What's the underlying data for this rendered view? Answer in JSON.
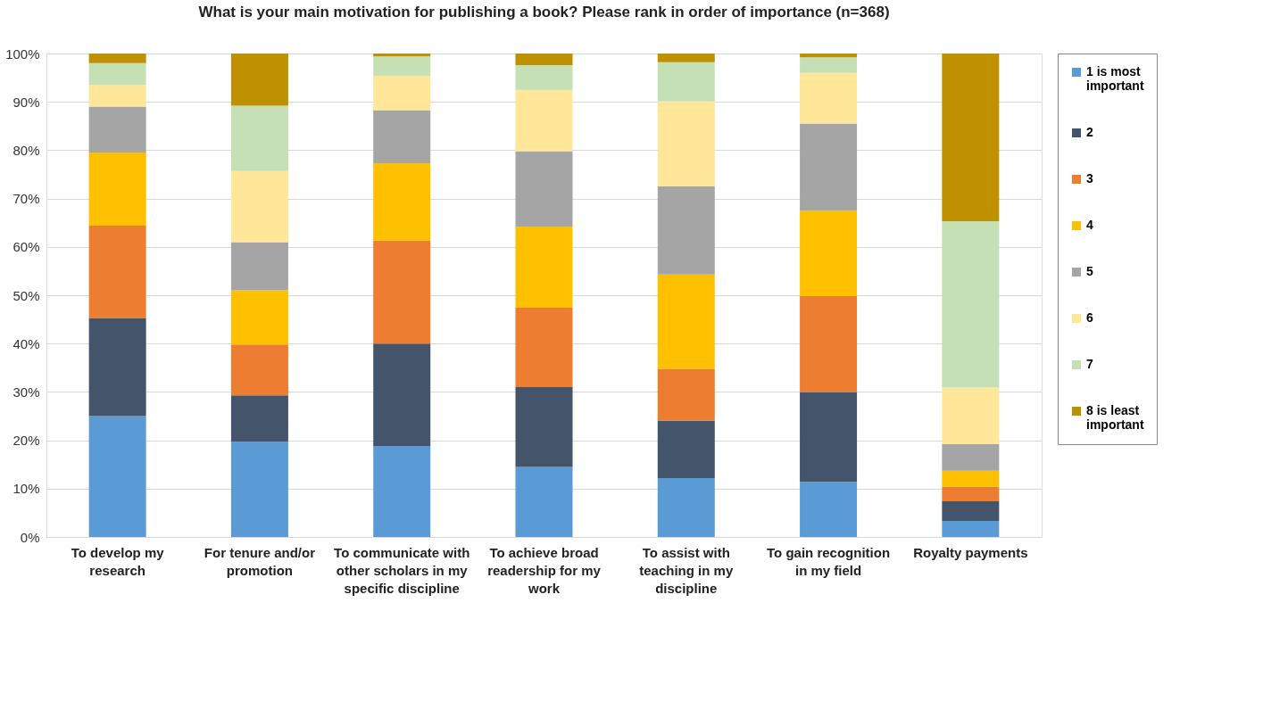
{
  "chart_data": {
    "type": "bar",
    "stacked": true,
    "title": "What is your main motivation for publishing a book?   Please rank in order of importance  (n=368)",
    "categories": [
      "To develop my research",
      "For tenure and/or promotion",
      "To communicate with other scholars in my specific discipline",
      "To achieve broad readership for my work",
      "To assist with teaching in my discipline",
      "To gain recognition in my field",
      "Royalty payments"
    ],
    "series": [
      {
        "name": "1 is most important",
        "color": "#5b9bd5",
        "values": [
          25,
          19.7,
          18.8,
          14.5,
          12.2,
          11.4,
          3.3
        ]
      },
      {
        "name": "2",
        "color": "#44546a",
        "values": [
          20.3,
          9.6,
          21.2,
          16.5,
          11.9,
          18.6,
          4.1
        ]
      },
      {
        "name": "3",
        "color": "#ed7d31",
        "values": [
          19.1,
          10.5,
          21.3,
          16.4,
          10.7,
          19.8,
          3.0
        ]
      },
      {
        "name": "4",
        "color": "#ffc000",
        "values": [
          15.1,
          11.2,
          16.0,
          16.8,
          19.5,
          17.7,
          3.3
        ]
      },
      {
        "name": "5",
        "color": "#a5a5a5",
        "values": [
          9.5,
          10.0,
          11.0,
          15.6,
          18.2,
          18.0,
          5.5
        ]
      },
      {
        "name": "6",
        "color": "#ffe699",
        "values": [
          4.5,
          14.7,
          7.1,
          12.7,
          17.6,
          10.5,
          11.7
        ]
      },
      {
        "name": "7",
        "color": "#c5e0b4",
        "values": [
          4.5,
          13.5,
          4.0,
          5.1,
          8.1,
          3.2,
          34.4
        ]
      },
      {
        "name": "8 is least important",
        "color": "#bf9000",
        "values": [
          2.0,
          10.8,
          0.6,
          2.4,
          1.8,
          0.8,
          34.7
        ]
      }
    ],
    "ylim": [
      0,
      100
    ],
    "yticks": [
      {
        "value": 0,
        "label": "0%"
      },
      {
        "value": 10,
        "label": "10%"
      },
      {
        "value": 20,
        "label": "20%"
      },
      {
        "value": 30,
        "label": "30%"
      },
      {
        "value": 40,
        "label": "40%"
      },
      {
        "value": 50,
        "label": "50%"
      },
      {
        "value": 60,
        "label": "60%"
      },
      {
        "value": 70,
        "label": "70%"
      },
      {
        "value": 80,
        "label": "80%"
      },
      {
        "value": 90,
        "label": "90%"
      },
      {
        "value": 100,
        "label": "100%"
      }
    ],
    "grid": "y",
    "legend": "right"
  }
}
